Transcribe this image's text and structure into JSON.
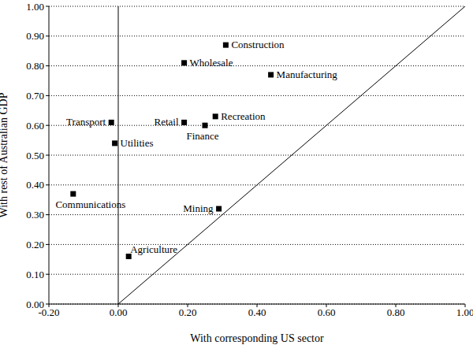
{
  "chart_data": {
    "type": "scatter",
    "x_label": "With corresponding US sector",
    "y_label": "With rest of Australian GDP",
    "labels": [
      "Construction",
      "Wholesale",
      "Manufacturing",
      "Recreation",
      "Retail",
      "Finance",
      "Transport",
      "Utilities",
      "Communications",
      "Mining",
      "Agriculture"
    ],
    "x": [
      0.31,
      0.19,
      0.44,
      0.28,
      0.19,
      0.25,
      -0.02,
      -0.01,
      -0.13,
      0.29,
      0.03
    ],
    "values": [
      0.87,
      0.81,
      0.77,
      0.63,
      0.61,
      0.6,
      0.61,
      0.54,
      0.37,
      0.32,
      0.16
    ],
    "color": "#000000",
    "marker": "square",
    "xlim": [
      -0.2,
      1.0
    ],
    "xticks": [
      {
        "value": -0.2,
        "label": "-0.20"
      },
      {
        "value": 0,
        "label": "0.00"
      },
      {
        "value": 0.2,
        "label": "0.20"
      },
      {
        "value": 0.4,
        "label": "0.40"
      },
      {
        "value": 0.6,
        "label": "0.60"
      },
      {
        "value": 0.8,
        "label": "0.80"
      },
      {
        "value": 1.0,
        "label": "1.00"
      }
    ],
    "ylim": [
      0,
      1.0
    ],
    "yticks": [
      {
        "value": 0,
        "label": "0.00"
      },
      {
        "value": 0.1,
        "label": "0.10"
      },
      {
        "value": 0.2,
        "label": "0.20"
      },
      {
        "value": 0.3,
        "label": "0.30"
      },
      {
        "value": 0.4,
        "label": "0.40"
      },
      {
        "value": 0.5,
        "label": "0.50"
      },
      {
        "value": 0.6,
        "label": "0.60"
      },
      {
        "value": 0.7,
        "label": "0.70"
      },
      {
        "value": 0.8,
        "label": "0.80"
      },
      {
        "value": 0.9,
        "label": "0.90"
      },
      {
        "value": 1.0,
        "label": "1.00"
      }
    ],
    "grid": true
  }
}
